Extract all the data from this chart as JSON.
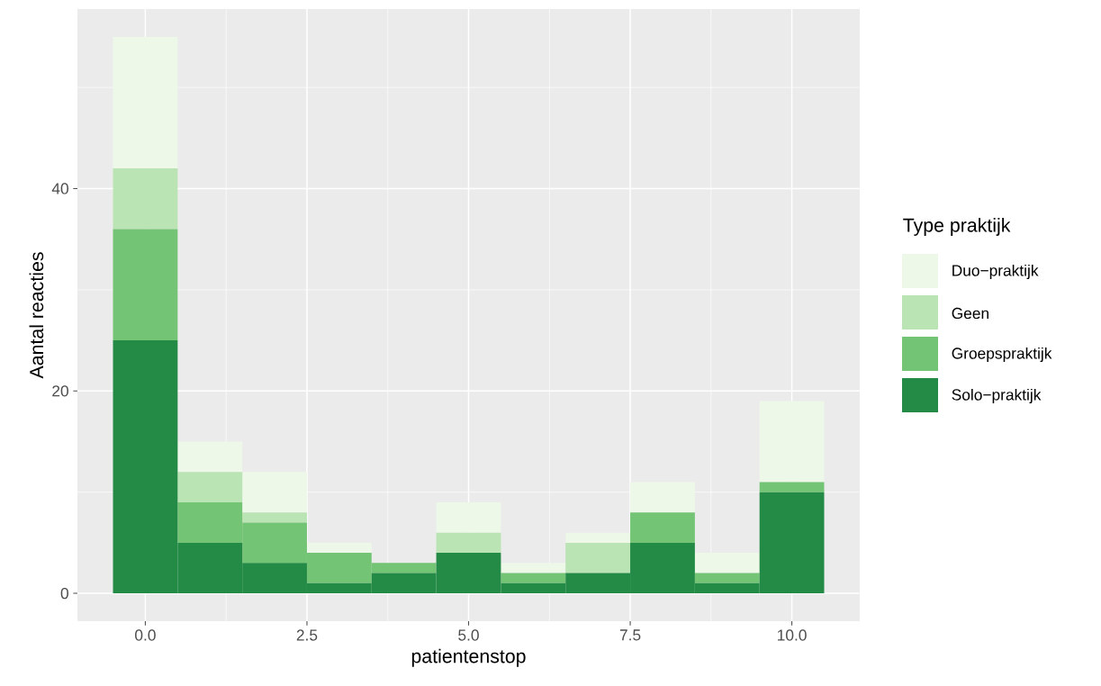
{
  "chart_data": {
    "type": "bar",
    "stacked": true,
    "xlabel": "patientenstop",
    "ylabel": "Aantal reacties",
    "legend_title": "Type praktijk",
    "legend": "right",
    "grid": true,
    "x": [
      0,
      1,
      2,
      3,
      4,
      5,
      6,
      7,
      8,
      9,
      10
    ],
    "series": [
      {
        "name": "Solo−praktijk",
        "color": "#238b45",
        "values": [
          25,
          5,
          3,
          1,
          2,
          4,
          1,
          2,
          5,
          1,
          10
        ]
      },
      {
        "name": "Groepspraktijk",
        "color": "#74c476",
        "values": [
          11,
          4,
          4,
          3,
          1,
          0,
          1,
          0,
          3,
          1,
          1
        ]
      },
      {
        "name": "Geen",
        "color": "#bae4b3",
        "values": [
          6,
          3,
          1,
          0,
          0,
          2,
          0,
          3,
          0,
          0,
          0
        ]
      },
      {
        "name": "Duo−praktijk",
        "color": "#edf8e9",
        "values": [
          13,
          3,
          4,
          1,
          0,
          3,
          1,
          1,
          3,
          2,
          8
        ]
      }
    ],
    "xlim": [
      -1.05,
      11.05
    ],
    "ylim": [
      -2.75,
      57.75
    ],
    "xticks": [
      {
        "value": 0,
        "label": "0.0"
      },
      {
        "value": 2.5,
        "label": "2.5"
      },
      {
        "value": 5,
        "label": "5.0"
      },
      {
        "value": 7.5,
        "label": "7.5"
      },
      {
        "value": 10,
        "label": "10.0"
      }
    ],
    "yticks": [
      0,
      20,
      40
    ]
  }
}
